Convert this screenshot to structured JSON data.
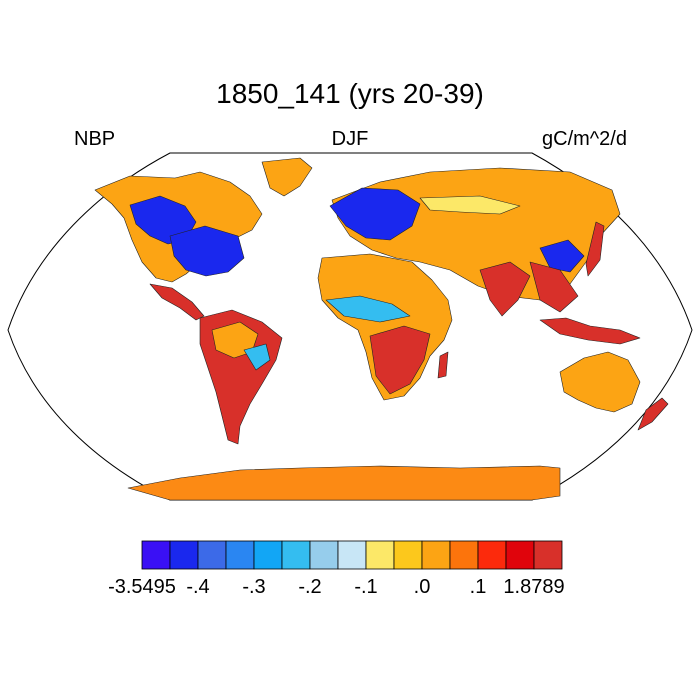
{
  "title": "1850_141 (yrs 20-39)",
  "left_label": "NBP",
  "center_label": "DJF",
  "right_label": "gC/m^2/d",
  "colorbar": {
    "colors": [
      "#3a10f5",
      "#1a28ee",
      "#3c6ae8",
      "#2a86f2",
      "#12a6f5",
      "#34bdf0",
      "#96cdec",
      "#c8e6f6",
      "#fce868",
      "#fcc81c",
      "#fca414",
      "#fc740c",
      "#fc2a0c",
      "#e0040c",
      "#d8302a"
    ],
    "labels": [
      "-3.5495",
      "-.4",
      "-.3",
      "-.2",
      "-.1",
      ".0",
      ".1",
      "1.8789"
    ]
  },
  "map_colors": {
    "orange": "#fca414",
    "dark_orange": "#fc740c",
    "red": "#d8302a",
    "blue": "#1a28ee",
    "light_blue": "#34bdf0",
    "yellow": "#fce868",
    "ice": "#fc8a14"
  }
}
